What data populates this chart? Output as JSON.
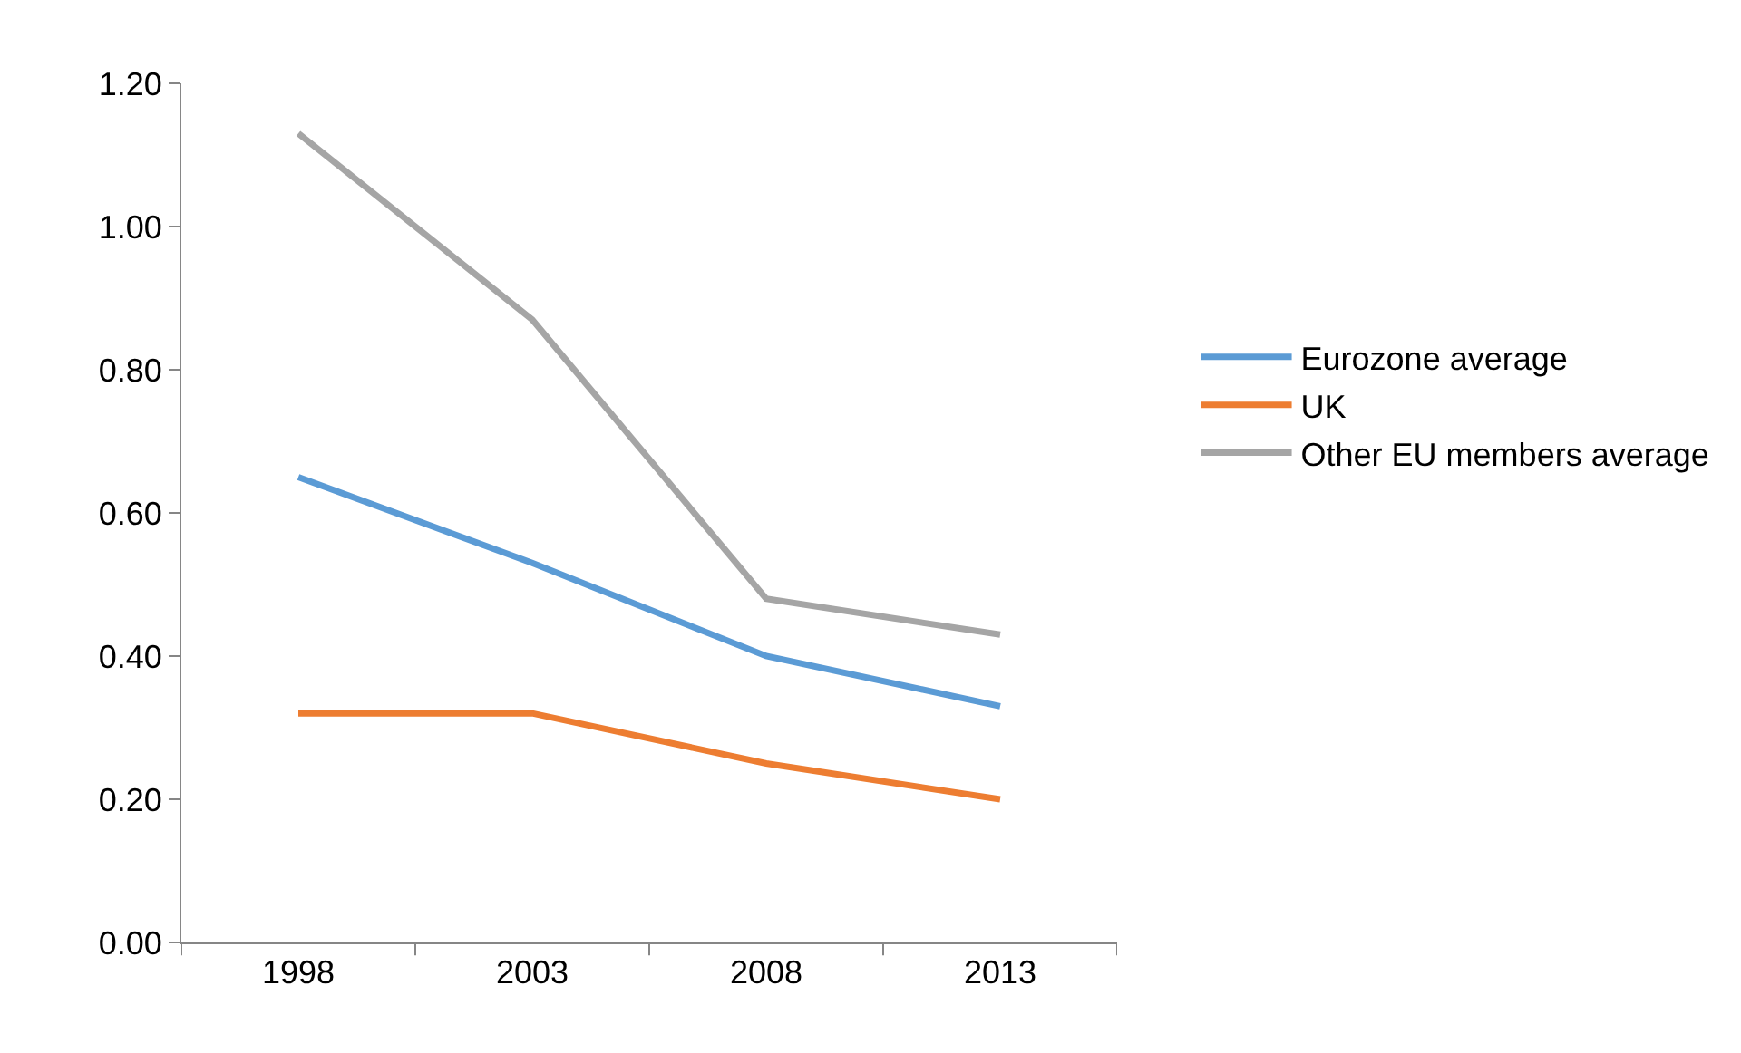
{
  "chart_data": {
    "type": "line",
    "categories": [
      "1998",
      "2003",
      "2008",
      "2013"
    ],
    "series": [
      {
        "name": "Eurozone average",
        "color": "#5b9bd5",
        "values": [
          0.65,
          0.53,
          0.4,
          0.33
        ]
      },
      {
        "name": "UK",
        "color": "#ed7d31",
        "values": [
          0.32,
          0.32,
          0.25,
          0.2
        ]
      },
      {
        "name": "Other EU members average",
        "color": "#a5a5a5",
        "values": [
          1.13,
          0.87,
          0.48,
          0.43
        ]
      }
    ],
    "ylim": [
      0,
      1.2
    ],
    "yticks": [
      {
        "value": 0,
        "label": "0.00"
      },
      {
        "value": 0.2,
        "label": "0.20"
      },
      {
        "value": 0.4,
        "label": "0.40"
      },
      {
        "value": 0.6,
        "label": "0.60"
      },
      {
        "value": 0.8,
        "label": "0.80"
      },
      {
        "value": 1.0,
        "label": "1.00"
      },
      {
        "value": 1.2,
        "label": "1.20"
      }
    ],
    "grid": false,
    "legend": "right",
    "marker": "none",
    "line_style": "solid"
  }
}
